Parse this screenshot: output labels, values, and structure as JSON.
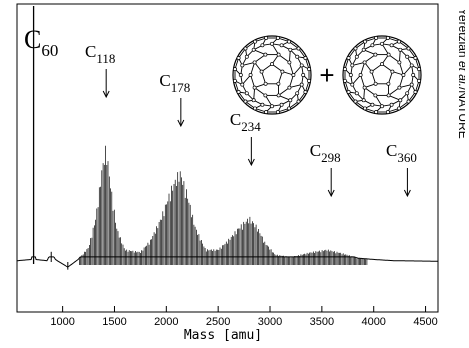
{
  "chart_data": {
    "type": "line",
    "xlabel": "Mass [amu]",
    "ylabel": "",
    "xlim": [
      560,
      4620
    ],
    "ylim": [
      0,
      100
    ],
    "x_ticks": [
      1000,
      1500,
      2000,
      2500,
      3000,
      3500,
      4000,
      4500
    ],
    "x_tick_labels": [
      "1000",
      "1500",
      "2000",
      "2500",
      "3000",
      "3500",
      "4000",
      "4500"
    ],
    "main_label": {
      "base": "C",
      "sub": "60"
    },
    "peak_labels": [
      {
        "base": "C",
        "sub": "118",
        "x": 1420
      },
      {
        "base": "C",
        "sub": "178",
        "x": 2140
      },
      {
        "base": "C",
        "sub": "234",
        "x": 2820
      },
      {
        "base": "C",
        "sub": "298",
        "x": 3590
      },
      {
        "base": "C",
        "sub": "360",
        "x": 4325
      }
    ],
    "plus_sign": "+",
    "envelope": [
      {
        "x": 560,
        "y": 0.5
      },
      {
        "x": 700,
        "y": 1
      },
      {
        "x": 720,
        "y": 97
      },
      {
        "x": 740,
        "y": 1
      },
      {
        "x": 850,
        "y": 0.5
      },
      {
        "x": 890,
        "y": 4
      },
      {
        "x": 930,
        "y": 1
      },
      {
        "x": 1050,
        "y": -2
      },
      {
        "x": 1150,
        "y": 1
      },
      {
        "x": 1250,
        "y": 6
      },
      {
        "x": 1320,
        "y": 18
      },
      {
        "x": 1380,
        "y": 38
      },
      {
        "x": 1420,
        "y": 47
      },
      {
        "x": 1460,
        "y": 32
      },
      {
        "x": 1520,
        "y": 14
      },
      {
        "x": 1600,
        "y": 5
      },
      {
        "x": 1750,
        "y": 4
      },
      {
        "x": 1850,
        "y": 9
      },
      {
        "x": 1950,
        "y": 18
      },
      {
        "x": 2050,
        "y": 30
      },
      {
        "x": 2130,
        "y": 37
      },
      {
        "x": 2200,
        "y": 28
      },
      {
        "x": 2280,
        "y": 14
      },
      {
        "x": 2380,
        "y": 5
      },
      {
        "x": 2500,
        "y": 5
      },
      {
        "x": 2600,
        "y": 9
      },
      {
        "x": 2700,
        "y": 14
      },
      {
        "x": 2800,
        "y": 18
      },
      {
        "x": 2880,
        "y": 14
      },
      {
        "x": 2950,
        "y": 8
      },
      {
        "x": 3050,
        "y": 3
      },
      {
        "x": 3200,
        "y": 2
      },
      {
        "x": 3400,
        "y": 4
      },
      {
        "x": 3550,
        "y": 5
      },
      {
        "x": 3700,
        "y": 3.5
      },
      {
        "x": 3850,
        "y": 1.5
      },
      {
        "x": 4000,
        "y": 1
      },
      {
        "x": 4200,
        "y": 0.5
      },
      {
        "x": 4620,
        "y": 0.3
      }
    ]
  },
  "credit": {
    "text_before": "Yeretzian ",
    "text_italic": "et al.",
    "text_after": "/NATURE"
  }
}
